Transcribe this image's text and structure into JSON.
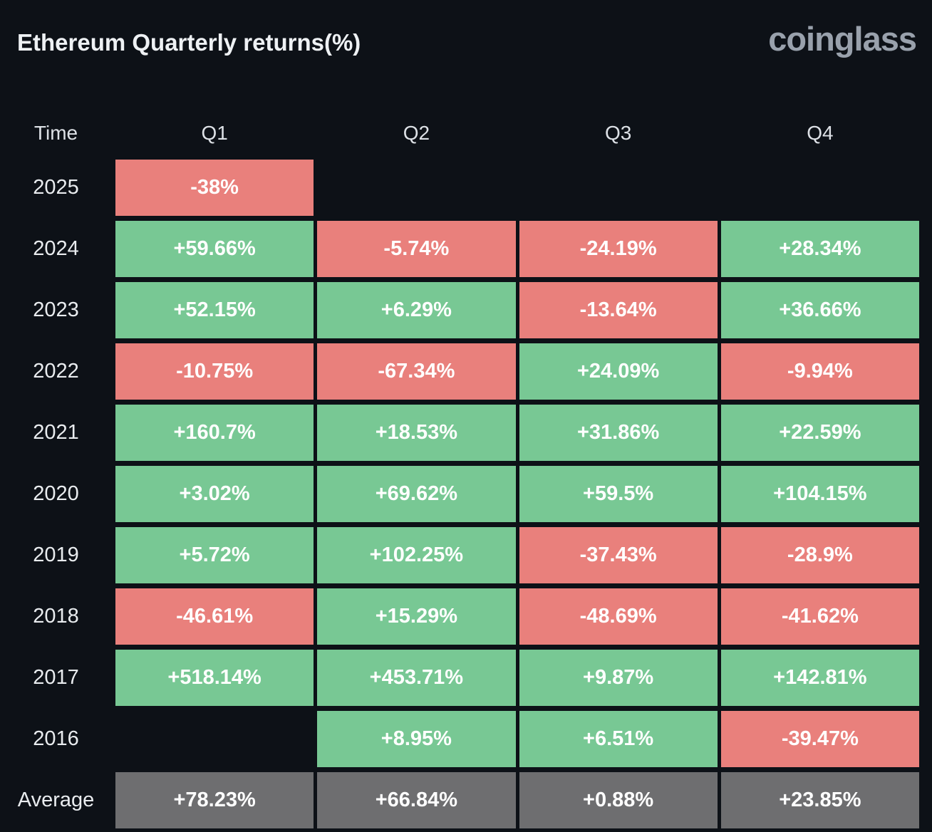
{
  "header": {
    "title": "Ethereum Quarterly returns(%)",
    "logo": "coinglass"
  },
  "colors": {
    "background": "#0d1117",
    "positive": "#78c894",
    "negative": "#e9807c",
    "average": "#6e6e70",
    "cell_text": "#ffffff",
    "label_text": "#e9ecef"
  },
  "table": {
    "columns": [
      "Time",
      "Q1",
      "Q2",
      "Q3",
      "Q4"
    ],
    "rows": [
      {
        "label": "2025",
        "cells": [
          {
            "value": "-38%",
            "type": "neg"
          },
          null,
          null,
          null
        ]
      },
      {
        "label": "2024",
        "cells": [
          {
            "value": "+59.66%",
            "type": "pos"
          },
          {
            "value": "-5.74%",
            "type": "neg"
          },
          {
            "value": "-24.19%",
            "type": "neg"
          },
          {
            "value": "+28.34%",
            "type": "pos"
          }
        ]
      },
      {
        "label": "2023",
        "cells": [
          {
            "value": "+52.15%",
            "type": "pos"
          },
          {
            "value": "+6.29%",
            "type": "pos"
          },
          {
            "value": "-13.64%",
            "type": "neg"
          },
          {
            "value": "+36.66%",
            "type": "pos"
          }
        ]
      },
      {
        "label": "2022",
        "cells": [
          {
            "value": "-10.75%",
            "type": "neg"
          },
          {
            "value": "-67.34%",
            "type": "neg"
          },
          {
            "value": "+24.09%",
            "type": "pos"
          },
          {
            "value": "-9.94%",
            "type": "neg"
          }
        ]
      },
      {
        "label": "2021",
        "cells": [
          {
            "value": "+160.7%",
            "type": "pos"
          },
          {
            "value": "+18.53%",
            "type": "pos"
          },
          {
            "value": "+31.86%",
            "type": "pos"
          },
          {
            "value": "+22.59%",
            "type": "pos"
          }
        ]
      },
      {
        "label": "2020",
        "cells": [
          {
            "value": "+3.02%",
            "type": "pos"
          },
          {
            "value": "+69.62%",
            "type": "pos"
          },
          {
            "value": "+59.5%",
            "type": "pos"
          },
          {
            "value": "+104.15%",
            "type": "pos"
          }
        ]
      },
      {
        "label": "2019",
        "cells": [
          {
            "value": "+5.72%",
            "type": "pos"
          },
          {
            "value": "+102.25%",
            "type": "pos"
          },
          {
            "value": "-37.43%",
            "type": "neg"
          },
          {
            "value": "-28.9%",
            "type": "neg"
          }
        ]
      },
      {
        "label": "2018",
        "cells": [
          {
            "value": "-46.61%",
            "type": "neg"
          },
          {
            "value": "+15.29%",
            "type": "pos"
          },
          {
            "value": "-48.69%",
            "type": "neg"
          },
          {
            "value": "-41.62%",
            "type": "neg"
          }
        ]
      },
      {
        "label": "2017",
        "cells": [
          {
            "value": "+518.14%",
            "type": "pos"
          },
          {
            "value": "+453.71%",
            "type": "pos"
          },
          {
            "value": "+9.87%",
            "type": "pos"
          },
          {
            "value": "+142.81%",
            "type": "pos"
          }
        ]
      },
      {
        "label": "2016",
        "cells": [
          null,
          {
            "value": "+8.95%",
            "type": "pos"
          },
          {
            "value": "+6.51%",
            "type": "pos"
          },
          {
            "value": "-39.47%",
            "type": "neg"
          }
        ]
      },
      {
        "label": "Average",
        "cells": [
          {
            "value": "+78.23%",
            "type": "avg"
          },
          {
            "value": "+66.84%",
            "type": "avg"
          },
          {
            "value": "+0.88%",
            "type": "avg"
          },
          {
            "value": "+23.85%",
            "type": "avg"
          }
        ]
      }
    ]
  },
  "chart_data": {
    "type": "heatmap",
    "title": "Ethereum Quarterly returns(%)",
    "columns": [
      "Q1",
      "Q2",
      "Q3",
      "Q4"
    ],
    "row_labels": [
      "2025",
      "2024",
      "2023",
      "2022",
      "2021",
      "2020",
      "2019",
      "2018",
      "2017",
      "2016",
      "Average"
    ],
    "values": [
      [
        -38,
        null,
        null,
        null
      ],
      [
        59.66,
        -5.74,
        -24.19,
        28.34
      ],
      [
        52.15,
        6.29,
        -13.64,
        36.66
      ],
      [
        -10.75,
        -67.34,
        24.09,
        -9.94
      ],
      [
        160.7,
        18.53,
        31.86,
        22.59
      ],
      [
        3.02,
        69.62,
        59.5,
        104.15
      ],
      [
        5.72,
        102.25,
        -37.43,
        -28.9
      ],
      [
        -46.61,
        15.29,
        -48.69,
        -41.62
      ],
      [
        518.14,
        453.71,
        9.87,
        142.81
      ],
      [
        null,
        8.95,
        6.51,
        -39.47
      ],
      [
        78.23,
        66.84,
        0.88,
        23.85
      ]
    ],
    "legend": "green = positive return, red = negative return, gray = column average",
    "unit": "%"
  }
}
